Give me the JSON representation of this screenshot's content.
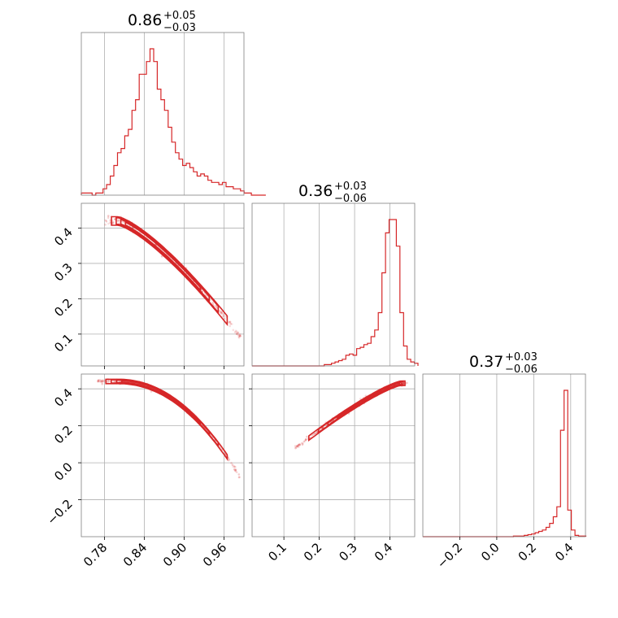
{
  "chart_data": {
    "type": "corner",
    "color": "#d62728",
    "parameters": [
      {
        "median": 0.86,
        "plus": 0.05,
        "minus": 0.03,
        "title_main": "0.86",
        "title_plus": "+0.05",
        "title_minus": "−0.03",
        "range": [
          0.745,
          0.99
        ],
        "ticks": [
          0.78,
          0.84,
          0.9,
          0.96
        ],
        "tick_labels": [
          "0.78",
          "0.84",
          "0.90",
          "0.96"
        ]
      },
      {
        "median": 0.36,
        "plus": 0.03,
        "minus": 0.06,
        "title_main": "0.36",
        "title_plus": "+0.03",
        "title_minus": "−0.06",
        "range": [
          0.01,
          0.47
        ],
        "ticks": [
          0.1,
          0.2,
          0.3,
          0.4
        ],
        "tick_labels": [
          "0.1",
          "0.2",
          "0.3",
          "0.4"
        ]
      },
      {
        "median": 0.37,
        "plus": 0.03,
        "minus": 0.06,
        "title_main": "0.37",
        "title_plus": "+0.03",
        "title_minus": "−0.06",
        "range": [
          -0.4,
          0.48
        ],
        "ticks": [
          -0.2,
          0.0,
          0.2,
          0.4
        ],
        "tick_labels": [
          "−0.2",
          "0.0",
          "0.2",
          "0.4"
        ]
      }
    ],
    "histograms": [
      {
        "bin_start": 0.745,
        "bin_width": 0.00545,
        "counts": [
          1,
          1,
          1,
          0,
          1,
          1,
          3,
          5,
          9,
          14,
          20,
          22,
          28,
          31,
          40,
          45,
          57,
          57,
          63,
          69,
          63,
          50,
          45,
          40,
          32,
          25,
          20,
          17,
          14,
          15,
          13,
          11,
          9,
          10,
          9,
          7,
          6,
          6,
          5,
          6,
          4,
          4,
          3,
          3,
          2,
          1,
          1,
          0,
          0,
          0,
          0
        ]
      },
      {
        "bin_start": 0.01,
        "bin_width": 0.0102,
        "counts": [
          0,
          0,
          0,
          0,
          0,
          0,
          0,
          0,
          0,
          0,
          0,
          0,
          0,
          0,
          0,
          0,
          0,
          0,
          0,
          0,
          1,
          1,
          2,
          3,
          4,
          5,
          8,
          9,
          8,
          13,
          14,
          16,
          17,
          22,
          27,
          40,
          70,
          100,
          110,
          110,
          90,
          40,
          15,
          5,
          3,
          2
        ]
      },
      {
        "bin_start": -0.4,
        "bin_width": 0.0196,
        "counts": [
          0,
          0,
          0,
          0,
          0,
          0,
          0,
          0,
          0,
          0,
          0,
          0,
          0,
          0,
          0,
          0,
          0,
          0,
          0,
          0,
          0,
          0,
          0,
          0,
          0,
          1,
          1,
          1,
          2,
          3,
          4,
          6,
          8,
          10,
          14,
          20,
          30,
          45,
          160,
          220,
          40,
          10,
          2,
          1,
          1
        ]
      }
    ]
  }
}
